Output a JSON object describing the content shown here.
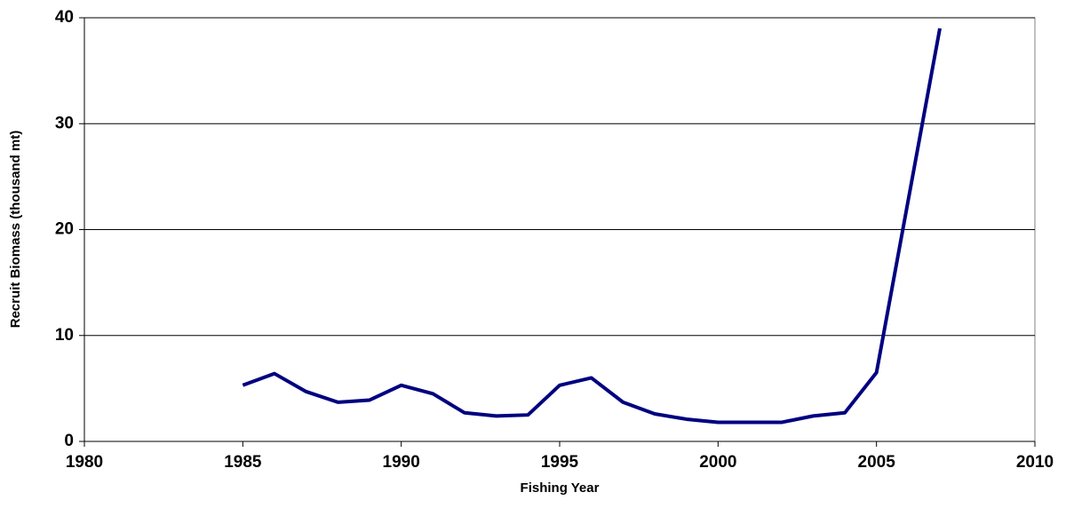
{
  "chart_data": {
    "type": "line",
    "x_label": "Fishing Year",
    "y_label": "Recruit Biomass (thousand mt)",
    "x": [
      1985,
      1986,
      1987,
      1988,
      1989,
      1990,
      1991,
      1992,
      1993,
      1994,
      1995,
      1996,
      1997,
      1998,
      1999,
      2000,
      2001,
      2002,
      2003,
      2004,
      2005,
      2007
    ],
    "series": [
      {
        "name": "Recruit Biomass",
        "color": "#000080",
        "values": [
          5.3,
          6.4,
          4.7,
          3.7,
          3.9,
          5.3,
          4.5,
          2.7,
          2.4,
          2.5,
          5.3,
          6.0,
          3.7,
          2.6,
          2.1,
          1.8,
          1.8,
          1.8,
          2.4,
          2.7,
          6.5,
          39.0
        ]
      }
    ],
    "xlim": [
      1980,
      2010
    ],
    "xticks": [
      1980,
      1985,
      1990,
      1995,
      2000,
      2005,
      2010
    ],
    "ylim": [
      0,
      40
    ],
    "yticks": [
      0,
      10,
      20,
      30,
      40
    ],
    "grid": true
  }
}
